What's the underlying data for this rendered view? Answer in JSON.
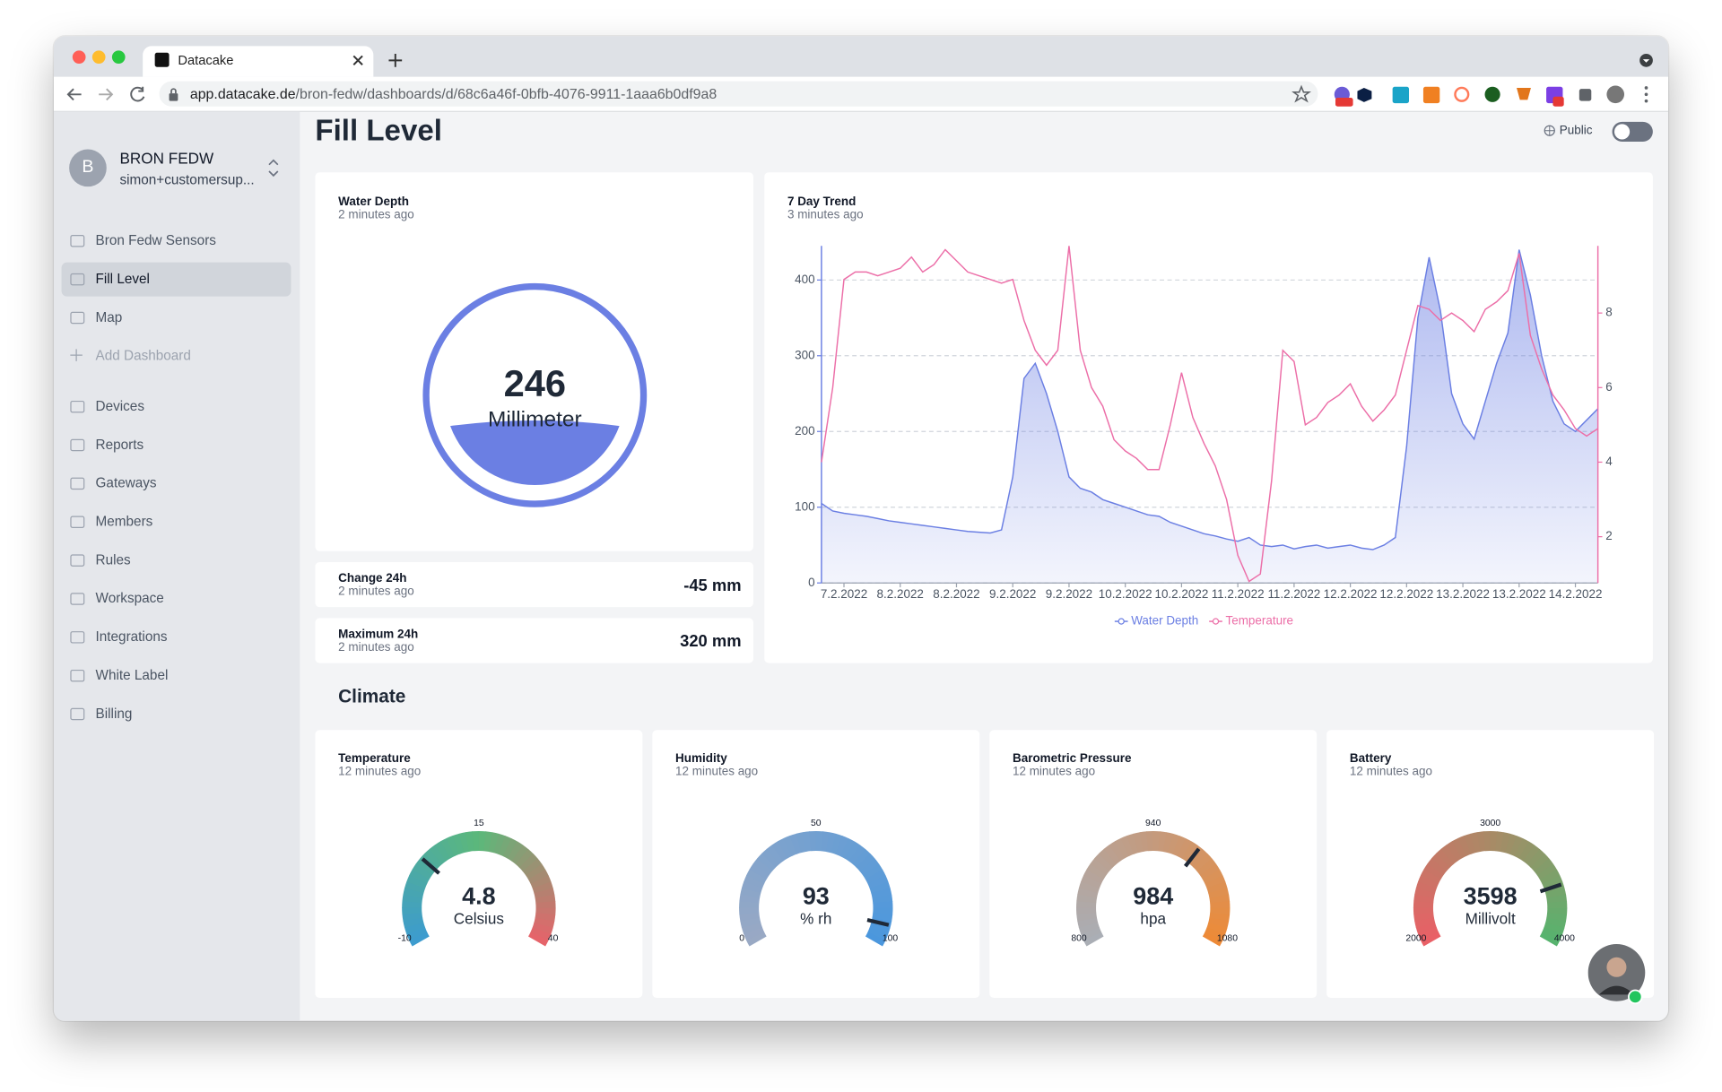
{
  "browser": {
    "tab_title": "Datacake",
    "url_host": "app.datacake.de",
    "url_path": "/bron-fedw/dashboards/d/68c6a46f-0bfb-4076-9911-1aaa6b0df9a8"
  },
  "sidebar": {
    "avatar": "B",
    "workspace": "BRON FEDW",
    "user": "simon+customersup...",
    "nav": [
      "Bron Fedw Sensors",
      "Fill Level",
      "Map",
      "Add Dashboard"
    ],
    "nav2": [
      "Devices",
      "Reports",
      "Gateways",
      "Members",
      "Rules",
      "Workspace",
      "Integrations",
      "White Label",
      "Billing"
    ]
  },
  "page": {
    "title": "Fill Level",
    "public": "Public",
    "section": "Climate"
  },
  "water_depth": {
    "title": "Water Depth",
    "updated": "2 minutes ago",
    "value": 246,
    "unit": "Millimeter"
  },
  "change": {
    "title": "Change 24h",
    "updated": "2 minutes ago",
    "value": "-45 mm"
  },
  "maximum": {
    "title": "Maximum 24h",
    "updated": "2 minutes ago",
    "value": "320 mm"
  },
  "chart_data": {
    "type": "line",
    "title": "7 Day Trend",
    "subtitle": "3 minutes ago",
    "categories": [
      null,
      null,
      "7.2.2022",
      null,
      null,
      null,
      null,
      "8.2.2022",
      null,
      null,
      null,
      null,
      "8.2.2022",
      null,
      null,
      null,
      null,
      "9.2.2022",
      null,
      null,
      null,
      null,
      "9.2.2022",
      null,
      null,
      null,
      null,
      "10.2.2022",
      null,
      null,
      null,
      null,
      "10.2.2022",
      null,
      null,
      null,
      null,
      "11.2.2022",
      null,
      null,
      null,
      null,
      "11.2.2022",
      null,
      null,
      null,
      null,
      "12.2.2022",
      null,
      null,
      null,
      null,
      "12.2.2022",
      null,
      null,
      null,
      null,
      "13.2.2022",
      null,
      null,
      null,
      null,
      "13.2.2022",
      null,
      null,
      null,
      null,
      "14.2.2022",
      null,
      null
    ],
    "series": [
      {
        "name": "Water Depth",
        "color": "#6b7fe3",
        "area": true,
        "values": [
          105,
          95,
          92,
          90,
          88,
          85,
          82,
          80,
          78,
          76,
          74,
          72,
          70,
          68,
          67,
          66,
          70,
          140,
          270,
          290,
          250,
          200,
          140,
          125,
          120,
          110,
          105,
          100,
          95,
          90,
          88,
          80,
          75,
          70,
          65,
          62,
          58,
          55,
          60,
          50,
          48,
          50,
          45,
          48,
          50,
          46,
          48,
          50,
          46,
          44,
          50,
          60,
          180,
          350,
          430,
          360,
          250,
          210,
          190,
          240,
          290,
          330,
          440,
          380,
          300,
          240,
          210,
          200,
          215,
          230
        ]
      },
      {
        "name": "Temperature",
        "color": "#ec6fa8",
        "axis": "y2",
        "values": [
          4.0,
          6.0,
          8.9,
          9.1,
          9.1,
          9.0,
          9.1,
          9.2,
          9.5,
          9.1,
          9.3,
          9.7,
          9.4,
          9.1,
          9.0,
          8.9,
          8.8,
          8.9,
          7.8,
          7.0,
          6.6,
          7.0,
          9.8,
          7.0,
          6.0,
          5.5,
          4.6,
          4.3,
          4.1,
          3.8,
          3.8,
          5.0,
          6.4,
          5.2,
          4.5,
          3.9,
          3.0,
          1.5,
          0.8,
          1.0,
          3.5,
          7.0,
          6.7,
          5.0,
          5.2,
          5.6,
          5.8,
          6.1,
          5.5,
          5.1,
          5.4,
          5.8,
          7.0,
          8.2,
          8.1,
          7.8,
          8.0,
          7.8,
          7.5,
          8.1,
          8.3,
          8.6,
          9.6,
          7.4,
          6.5,
          5.8,
          5.4,
          4.9,
          4.7,
          4.9
        ]
      }
    ],
    "ylim": [
      0,
      445
    ],
    "yticks": [
      0,
      100,
      200,
      300,
      400
    ],
    "y2lim": [
      0.76,
      9.8
    ],
    "y2ticks": [
      2,
      4,
      6,
      8
    ],
    "grid": true
  },
  "gauges": [
    {
      "title": "Temperature",
      "updated": "12 minutes ago",
      "value": 4.8,
      "unit": "Celsius",
      "min": -10,
      "mid": 15,
      "max": 40,
      "colors": [
        "#3c9bd0",
        "#5cb87a",
        "#e8626a"
      ]
    },
    {
      "title": "Humidity",
      "updated": "12 minutes ago",
      "value": 93,
      "unit": "% rh",
      "min": 0,
      "mid": 50,
      "max": 100,
      "colors": [
        "#9aa9c4",
        "#4a97dd"
      ]
    },
    {
      "title": "Barometric Pressure",
      "updated": "12 minutes ago",
      "value": 984,
      "unit": "hpa",
      "min": 800,
      "mid": 940,
      "max": 1080,
      "colors": [
        "#a9aeb6",
        "#c49a7d",
        "#ee8a36"
      ]
    },
    {
      "title": "Battery",
      "updated": "12 minutes ago",
      "value": 3598,
      "unit": "Millivolt",
      "min": 2000,
      "mid": 3000,
      "max": 4000,
      "colors": [
        "#ea5f66",
        "#a98a66",
        "#55b46e"
      ]
    }
  ]
}
